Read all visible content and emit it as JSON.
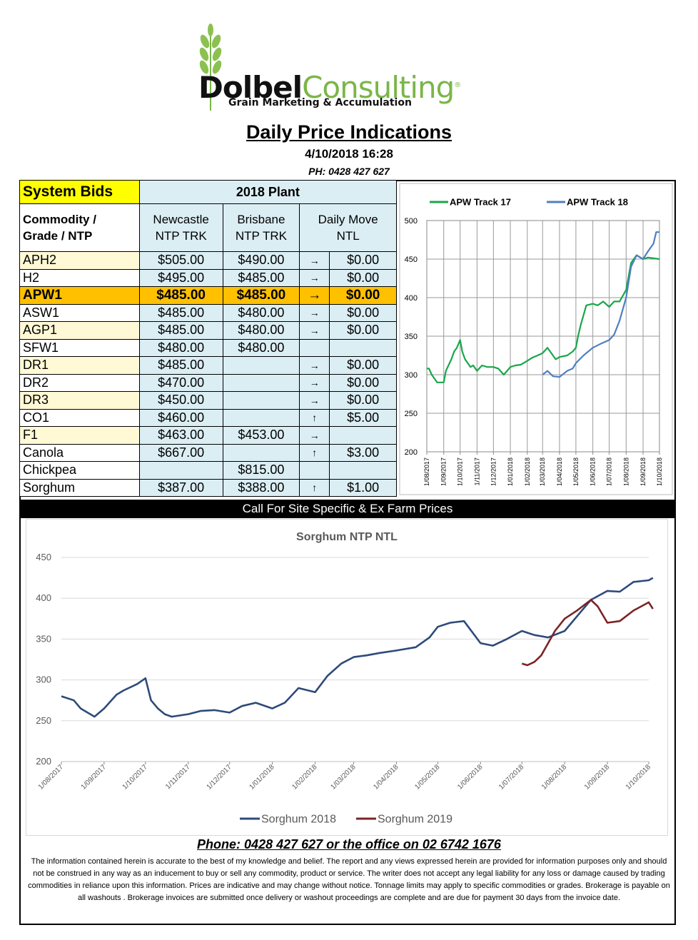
{
  "brand": {
    "name_bold": "Dolbel",
    "name_light": "Consulting",
    "reg": "®",
    "tagline": "Grain Marketing & Accumulation"
  },
  "header": {
    "title": "Daily Price Indications",
    "datetime": "4/10/2018 16:28",
    "phone": "PH: 0428 427 627"
  },
  "table": {
    "system_bids": "System Bids",
    "plant": "2018 Plant",
    "col_commodity": [
      "Commodity /",
      "Grade / NTP"
    ],
    "col_newcastle": [
      "Newcastle",
      "NTP TRK"
    ],
    "col_brisbane": [
      "Brisbane",
      "NTP TRK"
    ],
    "col_move": [
      "Daily  Move",
      "NTL"
    ],
    "rows": [
      {
        "grade": "APH2",
        "newcastle": "$505.00",
        "brisbane": "$490.00",
        "arrow": "→",
        "move": "$0.00"
      },
      {
        "grade": "H2",
        "newcastle": "$495.00",
        "brisbane": "$485.00",
        "arrow": "→",
        "move": "$0.00"
      },
      {
        "grade": "APW1",
        "newcastle": "$485.00",
        "brisbane": "$485.00",
        "arrow": "→",
        "move": "$0.00"
      },
      {
        "grade": "ASW1",
        "newcastle": "$485.00",
        "brisbane": "$480.00",
        "arrow": "→",
        "move": "$0.00"
      },
      {
        "grade": "AGP1",
        "newcastle": "$485.00",
        "brisbane": "$480.00",
        "arrow": "→",
        "move": "$0.00"
      },
      {
        "grade": "SFW1",
        "newcastle": "$480.00",
        "brisbane": "$480.00",
        "arrow": "",
        "move": ""
      },
      {
        "grade": "DR1",
        "newcastle": "$485.00",
        "brisbane": "",
        "arrow": "→",
        "move": "$0.00"
      },
      {
        "grade": "DR2",
        "newcastle": "$470.00",
        "brisbane": "",
        "arrow": "→",
        "move": "$0.00"
      },
      {
        "grade": "DR3",
        "newcastle": "$450.00",
        "brisbane": "",
        "arrow": "→",
        "move": "$0.00"
      },
      {
        "grade": "CO1",
        "newcastle": "$460.00",
        "brisbane": "",
        "arrow": "↑",
        "move": "$5.00"
      },
      {
        "grade": "F1",
        "newcastle": "$463.00",
        "brisbane": "$453.00",
        "arrow": "→",
        "move": ""
      },
      {
        "grade": "Canola",
        "newcastle": "$667.00",
        "brisbane": "",
        "arrow": "↑",
        "move": "$3.00"
      },
      {
        "grade": "Chickpea",
        "newcastle": "",
        "brisbane": "$815.00",
        "arrow": "",
        "move": ""
      },
      {
        "grade": "Sorghum",
        "newcastle": "$387.00",
        "brisbane": "$388.00",
        "arrow": "↑",
        "move": "$1.00"
      }
    ]
  },
  "call_bar": "Call For Site Specific & Ex Farm Prices",
  "footer": {
    "phone": "Phone: 0428 427 627 or the office on 02 6742 1676",
    "disclaimer": "The information contained herein is accurate to the best of my knowledge and belief.  The report and any views expressed herein are provided for information purposes only and should not be construed in any way as an inducement to buy or sell any commodity, product or service. The writer does not accept any legal liability for any loss or damage caused by trading commodities in reliance upon this information. Prices are indicative and may change without notice. Tonnage limits may apply to specific commodities or grades.  Brokerage is payable on all washouts . Brokerage invoices are submitted once delivery or washout proceedings are complete and are due for payment 30 days from the invoice date."
  },
  "colors": {
    "apw17": "#1aa64a",
    "apw18": "#4f7fc0",
    "sorghum2018": "#2e4a7a",
    "sorghum2019": "#7b2424",
    "highlight": "#ffc000",
    "system_bids": "#ffff00",
    "cell_blue": "#dbeef4"
  },
  "chart_data": [
    {
      "type": "line",
      "title": "",
      "ylim": [
        200,
        500
      ],
      "yticks": [
        200,
        250,
        300,
        350,
        400,
        450,
        500
      ],
      "xticks": [
        "1/08/2017",
        "1/09/2017",
        "1/10/2017",
        "1/11/2017",
        "1/12/2017",
        "1/01/2018",
        "1/02/2018",
        "1/03/2018",
        "1/04/2018",
        "1/05/2018",
        "1/06/2018",
        "1/07/2018",
        "1/08/2018",
        "1/09/2018",
        "1/10/2018"
      ],
      "legend_position": "top",
      "series": [
        {
          "name": "APW Track 17",
          "x": [
            "1/08/2017",
            "5/08/2017",
            "10/08/2017",
            "20/08/2017",
            "1/09/2017",
            "5/09/2017",
            "15/09/2017",
            "20/09/2017",
            "25/09/2017",
            "1/10/2017",
            "5/10/2017",
            "10/10/2017",
            "15/10/2017",
            "20/10/2017",
            "25/10/2017",
            "1/11/2017",
            "10/11/2017",
            "20/11/2017",
            "1/12/2017",
            "10/12/2017",
            "20/12/2017",
            "1/01/2018",
            "10/01/2018",
            "20/01/2018",
            "1/02/2018",
            "10/02/2018",
            "20/02/2018",
            "1/03/2018",
            "10/03/2018",
            "15/03/2018",
            "25/03/2018",
            "1/04/2018",
            "15/04/2018",
            "25/04/2018",
            "1/05/2018",
            "5/05/2018",
            "10/05/2018",
            "20/05/2018",
            "1/06/2018",
            "10/06/2018",
            "20/06/2018",
            "1/07/2018",
            "10/07/2018",
            "20/07/2018",
            "1/08/2018",
            "10/08/2018",
            "20/08/2018",
            "1/09/2018",
            "10/09/2018",
            "20/09/2018",
            "1/10/2018"
          ],
          "values": [
            308,
            308,
            300,
            290,
            290,
            305,
            320,
            330,
            335,
            345,
            330,
            320,
            315,
            310,
            312,
            305,
            312,
            310,
            310,
            308,
            300,
            310,
            312,
            313,
            318,
            322,
            325,
            328,
            335,
            330,
            320,
            323,
            325,
            330,
            335,
            350,
            365,
            390,
            392,
            390,
            395,
            388,
            395,
            395,
            410,
            445,
            455,
            450,
            452,
            451,
            450
          ]
        },
        {
          "name": "APW Track 18",
          "x": [
            "1/03/2018",
            "10/03/2018",
            "20/03/2018",
            "1/04/2018",
            "15/04/2018",
            "25/04/2018",
            "1/05/2018",
            "15/05/2018",
            "1/06/2018",
            "15/06/2018",
            "1/07/2018",
            "10/07/2018",
            "20/07/2018",
            "1/08/2018",
            "10/08/2018",
            "20/08/2018",
            "1/09/2018",
            "10/09/2018",
            "20/09/2018",
            "25/09/2018",
            "1/10/2018"
          ],
          "values": [
            300,
            305,
            298,
            297,
            305,
            308,
            315,
            325,
            335,
            340,
            345,
            352,
            370,
            400,
            440,
            455,
            450,
            460,
            470,
            485,
            485
          ]
        }
      ]
    },
    {
      "type": "line",
      "title": "Sorghum  NTP NTL",
      "ylim": [
        200,
        450
      ],
      "yticks": [
        200,
        250,
        300,
        350,
        400,
        450
      ],
      "xticks": [
        "1/08/2017",
        "1/09/2017",
        "1/10/2017",
        "1/11/2017",
        "1/12/2017",
        "1/01/2018",
        "1/02/2018",
        "1/03/2018",
        "1/04/2018",
        "1/05/2018",
        "1/06/2018",
        "1/07/2018",
        "1/08/2018",
        "1/09/2018",
        "1/10/2018"
      ],
      "legend_position": "bottom",
      "series": [
        {
          "name": "Sorghum 2018",
          "x": [
            "1/08/2017",
            "10/08/2017",
            "15/08/2017",
            "25/08/2017",
            "1/09/2017",
            "10/09/2017",
            "15/09/2017",
            "25/09/2017",
            "1/10/2017",
            "5/10/2017",
            "10/10/2017",
            "15/10/2017",
            "20/10/2017",
            "1/11/2017",
            "10/11/2017",
            "20/11/2017",
            "1/12/2017",
            "10/12/2017",
            "20/12/2017",
            "1/01/2018",
            "10/01/2018",
            "20/01/2018",
            "1/02/2018",
            "10/02/2018",
            "20/02/2018",
            "1/03/2018",
            "10/03/2018",
            "20/03/2018",
            "1/04/2018",
            "15/04/2018",
            "25/04/2018",
            "1/05/2018",
            "10/05/2018",
            "20/05/2018",
            "1/06/2018",
            "10/06/2018",
            "20/06/2018",
            "1/07/2018",
            "10/07/2018",
            "20/07/2018",
            "1/08/2018",
            "10/08/2018",
            "20/08/2018",
            "1/09/2018",
            "10/09/2018",
            "20/09/2018",
            "1/10/2018",
            "4/10/2018"
          ],
          "values": [
            280,
            275,
            265,
            255,
            265,
            282,
            287,
            295,
            302,
            275,
            265,
            258,
            255,
            258,
            262,
            263,
            260,
            268,
            272,
            265,
            272,
            290,
            285,
            305,
            320,
            328,
            330,
            333,
            336,
            340,
            352,
            365,
            370,
            372,
            345,
            342,
            350,
            360,
            355,
            352,
            360,
            378,
            398,
            409,
            408,
            420,
            422,
            425
          ]
        },
        {
          "name": "Sorghum 2019",
          "x": [
            "1/07/2018",
            "5/07/2018",
            "10/07/2018",
            "15/07/2018",
            "20/07/2018",
            "25/07/2018",
            "1/08/2018",
            "10/08/2018",
            "20/08/2018",
            "25/08/2018",
            "1/09/2018",
            "10/09/2018",
            "20/09/2018",
            "1/10/2018",
            "4/10/2018"
          ],
          "values": [
            320,
            318,
            322,
            330,
            345,
            360,
            375,
            385,
            398,
            390,
            370,
            372,
            385,
            395,
            387
          ]
        }
      ]
    }
  ]
}
